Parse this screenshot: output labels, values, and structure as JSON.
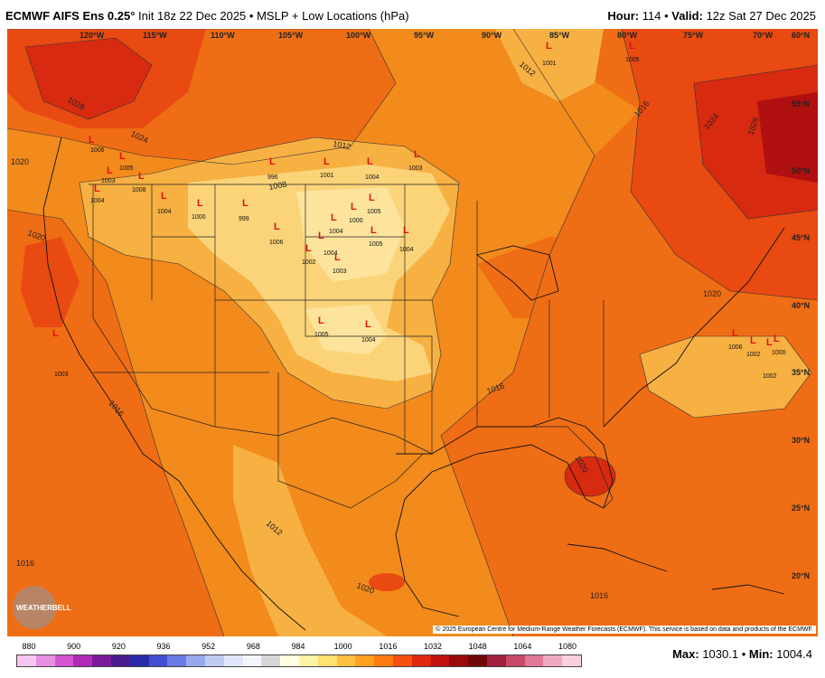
{
  "header": {
    "model": "ECMWF AIFS Ens 0.25°",
    "init": "Init 18z 22 Dec 2025",
    "sep": "•",
    "field": "MSLP + Low Locations (hPa)",
    "hour_label": "Hour:",
    "hour_value": "114",
    "valid_label": "Valid:",
    "valid_value": "12z Sat 27 Dec 2025"
  },
  "lon_labels": [
    "120°W",
    "115°W",
    "110°W",
    "105°W",
    "100°W",
    "95°W",
    "90°W",
    "85°W",
    "80°W",
    "75°W",
    "70°W",
    "60°N"
  ],
  "lat_labels": [
    "55°N",
    "50°N",
    "45°N",
    "40°N",
    "35°N",
    "30°N",
    "25°N",
    "20°N"
  ],
  "isobar_labels": [
    "1028",
    "1024",
    "1020",
    "1020",
    "1016",
    "1016",
    "1016",
    "1016",
    "1016",
    "1012",
    "1012",
    "1012",
    "1024",
    "1028",
    "1020",
    "1020",
    "1020",
    "1008"
  ],
  "lows": [
    {
      "value": "1006"
    },
    {
      "value": "1005"
    },
    {
      "value": "1003"
    },
    {
      "value": "1004"
    },
    {
      "value": "1004"
    },
    {
      "value": "1008"
    },
    {
      "value": "996"
    },
    {
      "value": "1000"
    },
    {
      "value": "999"
    },
    {
      "value": "1006"
    },
    {
      "value": "1001"
    },
    {
      "value": "1004"
    },
    {
      "value": "1000"
    },
    {
      "value": "1004"
    },
    {
      "value": "1005"
    },
    {
      "value": "1003"
    },
    {
      "value": "1002"
    },
    {
      "value": "1003"
    },
    {
      "value": "1004"
    },
    {
      "value": "1005"
    },
    {
      "value": "1005"
    },
    {
      "value": "1004"
    },
    {
      "value": "1003"
    },
    {
      "value": "1004"
    },
    {
      "value": "1001"
    },
    {
      "value": "1005"
    },
    {
      "value": "1006"
    },
    {
      "value": "1002"
    },
    {
      "value": "1002"
    },
    {
      "value": "1000"
    }
  ],
  "copyright": "© 2025 European Centre for Medium-Range Weather Forecasts (ECMWF). This service is based on data and products of the ECMWF.",
  "logo_text": "WEATHERBELL",
  "colorbar": {
    "ticks": [
      "880",
      "900",
      "920",
      "936",
      "952",
      "968",
      "984",
      "1000",
      "1016",
      "1032",
      "1048",
      "1064",
      "1080"
    ],
    "colors": [
      "#f7c6f0",
      "#e88ee0",
      "#d455d0",
      "#b02ab8",
      "#7a1a9a",
      "#4b1a8c",
      "#2a2aa8",
      "#3f4fd0",
      "#6a7ae4",
      "#98a8ee",
      "#c0cbf4",
      "#e0e6fa",
      "#f4f6fd",
      "#d7d7d7",
      "#ffffe0",
      "#fff3a8",
      "#ffe070",
      "#ffc040",
      "#ffa020",
      "#ff7a10",
      "#f45010",
      "#e02810",
      "#c01010",
      "#9a0a0a",
      "#700808",
      "#a02040",
      "#c84868",
      "#e07898",
      "#f0a8c0",
      "#f8d0e0"
    ]
  },
  "maxmin": {
    "max_label": "Max:",
    "max_value": "1030.1",
    "sep": "•",
    "min_label": "Min:",
    "min_value": "1004.4"
  }
}
